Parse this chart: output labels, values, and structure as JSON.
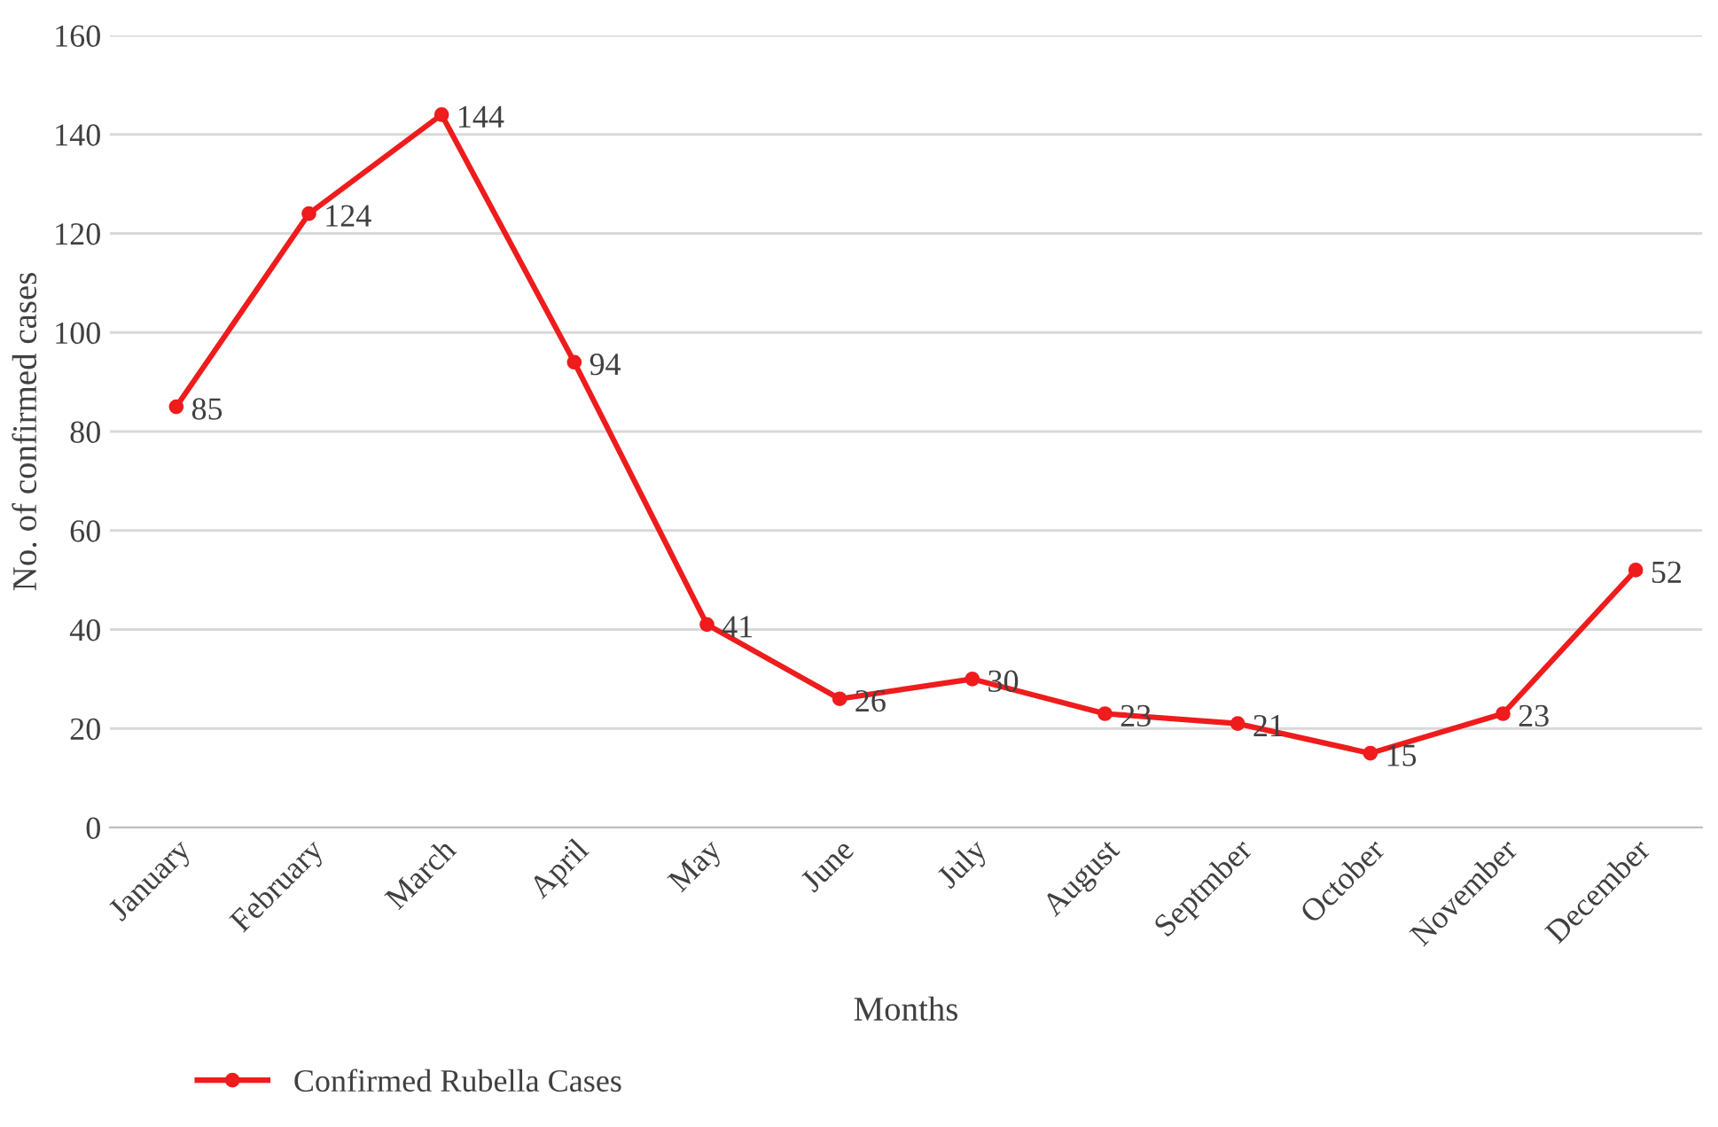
{
  "chart_data": {
    "type": "line",
    "xlabel": "Months",
    "ylabel": "No. of confirmed cases",
    "categories": [
      "January",
      "February",
      "March",
      "April",
      "May",
      "June",
      "July",
      "August",
      "Septmber",
      "October",
      "November",
      "December"
    ],
    "series": [
      {
        "name": "Confirmed Rubella Cases",
        "color": "#ee1c1c",
        "values": [
          85,
          124,
          144,
          94,
          41,
          26,
          30,
          23,
          21,
          15,
          23,
          52
        ]
      }
    ],
    "ylim": [
      0,
      160
    ],
    "yticks": [
      0,
      20,
      40,
      60,
      80,
      100,
      120,
      140,
      160
    ],
    "grid": "y",
    "legend": "bottom left",
    "marker": "circle",
    "line_style": "solid",
    "data_labels": true
  }
}
